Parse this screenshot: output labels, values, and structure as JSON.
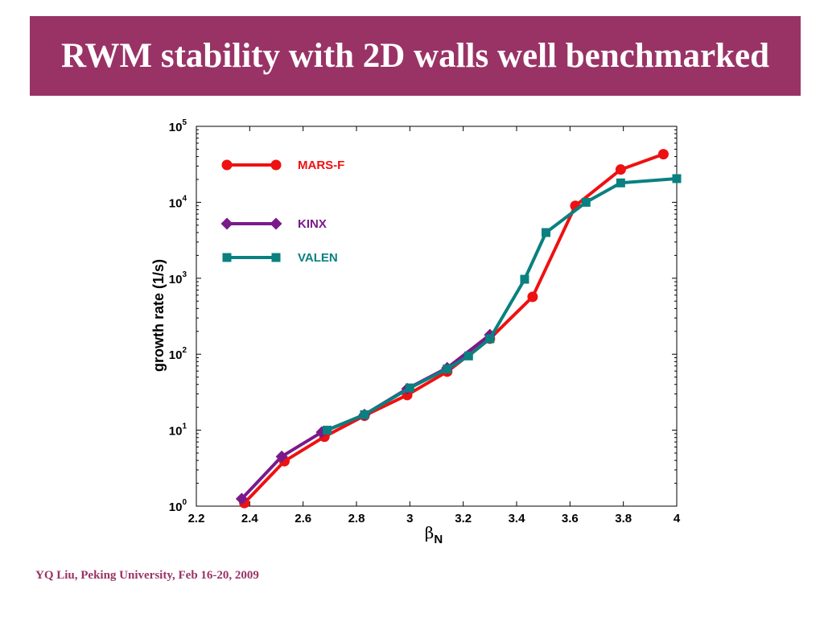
{
  "slide": {
    "title": "RWM stability with 2D walls well benchmarked",
    "footer": "YQ Liu, Peking University, Feb 16-20, 2009"
  },
  "colors": {
    "title_bar": "#993366",
    "footer_text": "#993366",
    "mars_f": "#ee1111",
    "kinx": "#7a1a8a",
    "valen": "#0a8080"
  },
  "chart_data": {
    "type": "line",
    "ylabel": "growth rate (1/s)",
    "xlabel_symbol": "β",
    "xlabel_subscript": "N",
    "xlim": [
      2.2,
      4.0
    ],
    "ylim": [
      1,
      100000
    ],
    "yscale": "log",
    "grid": false,
    "legend_position": "top-left",
    "x_ticks": [
      "2.2",
      "2.4",
      "2.6",
      "2.8",
      "3",
      "3.2",
      "3.4",
      "3.6",
      "3.8",
      "4"
    ],
    "y_ticks": [
      {
        "base": "10",
        "exp": "0"
      },
      {
        "base": "10",
        "exp": "1"
      },
      {
        "base": "10",
        "exp": "2"
      },
      {
        "base": "10",
        "exp": "3"
      },
      {
        "base": "10",
        "exp": "4"
      },
      {
        "base": "10",
        "exp": "5"
      }
    ],
    "series": [
      {
        "name": "MARS-F",
        "marker": "circle",
        "color": "#ee1111",
        "x": [
          2.38,
          2.53,
          2.68,
          2.83,
          2.99,
          3.14,
          3.3,
          3.46,
          3.62,
          3.79,
          3.95
        ],
        "y": [
          1.1,
          3.9,
          8.2,
          15.5,
          29,
          59,
          160,
          570,
          9000,
          27000,
          43000
        ]
      },
      {
        "name": "KINX",
        "marker": "diamond",
        "color": "#7a1a8a",
        "x": [
          2.37,
          2.52,
          2.67,
          2.83,
          2.99,
          3.14,
          3.3
        ],
        "y": [
          1.25,
          4.5,
          9.4,
          16,
          35,
          66,
          180
        ]
      },
      {
        "name": "VALEN",
        "marker": "square",
        "color": "#0a8080",
        "x": [
          2.69,
          2.83,
          3.0,
          3.14,
          3.22,
          3.3,
          3.43,
          3.51,
          3.66,
          3.79,
          4.0
        ],
        "y": [
          10,
          16,
          36,
          64,
          95,
          160,
          970,
          4000,
          10000,
          18000,
          20500
        ]
      }
    ]
  }
}
